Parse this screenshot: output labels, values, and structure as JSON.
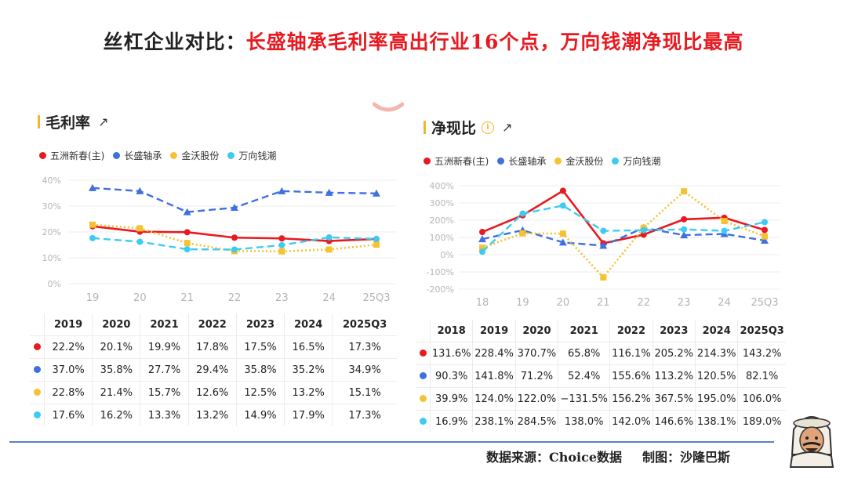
{
  "title": {
    "prefix": "丝杠企业对比：",
    "highlight": "长盛轴承毛利率高出行业16个点，万向钱潮净现比最高"
  },
  "colors": {
    "series": [
      "#e8191f",
      "#3f6fe0",
      "#f5c231",
      "#3ecbf0"
    ],
    "accent": "#f5b431",
    "footer_line": "#5b7fc7"
  },
  "left_panel": {
    "heading": "毛利率",
    "ext_icon": "external-link-icon",
    "ext_glyph": "↗"
  },
  "right_panel": {
    "heading": "净现比",
    "info_icon": "info-icon",
    "info_glyph": "i",
    "ext_icon": "external-link-icon",
    "ext_glyph": "↗"
  },
  "chart_data": [
    {
      "type": "line",
      "title": "毛利率",
      "categories": [
        "19",
        "20",
        "21",
        "22",
        "23",
        "24",
        "25Q3"
      ],
      "yticks": [
        "0%",
        "10%",
        "20%",
        "30%",
        "40%"
      ],
      "ylim": [
        0,
        40
      ],
      "series": [
        {
          "name": "五洲新春(主)",
          "values": [
            22.2,
            20.1,
            19.9,
            17.8,
            17.5,
            16.5,
            17.3
          ],
          "style": "solid"
        },
        {
          "name": "长盛轴承",
          "values": [
            37.0,
            35.8,
            27.7,
            29.4,
            35.8,
            35.2,
            34.9
          ],
          "style": "dashed"
        },
        {
          "name": "金沃股份",
          "values": [
            22.8,
            21.4,
            15.7,
            12.6,
            12.5,
            13.2,
            15.1
          ],
          "style": "dotted"
        },
        {
          "name": "万向钱潮",
          "values": [
            17.6,
            16.2,
            13.3,
            13.2,
            14.9,
            17.9,
            17.3
          ],
          "style": "dashed"
        }
      ],
      "table": {
        "headers": [
          "2019",
          "2020",
          "2021",
          "2022",
          "2023",
          "2024",
          "2025Q3"
        ],
        "rows": [
          [
            "22.2%",
            "20.1%",
            "19.9%",
            "17.8%",
            "17.5%",
            "16.5%",
            "17.3%"
          ],
          [
            "37.0%",
            "35.8%",
            "27.7%",
            "29.4%",
            "35.8%",
            "35.2%",
            "34.9%"
          ],
          [
            "22.8%",
            "21.4%",
            "15.7%",
            "12.6%",
            "12.5%",
            "13.2%",
            "15.1%"
          ],
          [
            "17.6%",
            "16.2%",
            "13.3%",
            "13.2%",
            "14.9%",
            "17.9%",
            "17.3%"
          ]
        ]
      }
    },
    {
      "type": "line",
      "title": "净现比",
      "categories": [
        "18",
        "19",
        "20",
        "21",
        "22",
        "23",
        "24",
        "25Q3"
      ],
      "yticks": [
        "-200%",
        "-100%",
        "0%",
        "100%",
        "200%",
        "300%",
        "400%"
      ],
      "ylim": [
        -200,
        400
      ],
      "series": [
        {
          "name": "五洲新春(主)",
          "values": [
            131.6,
            228.4,
            370.7,
            65.8,
            116.1,
            205.2,
            214.3,
            143.2
          ],
          "style": "solid"
        },
        {
          "name": "长盛轴承",
          "values": [
            90.3,
            141.8,
            71.2,
            52.4,
            155.6,
            113.2,
            120.5,
            82.1
          ],
          "style": "dashed"
        },
        {
          "name": "金沃股份",
          "values": [
            39.9,
            124.0,
            122.0,
            -131.5,
            156.2,
            367.5,
            195.0,
            106.0
          ],
          "style": "dotted"
        },
        {
          "name": "万向钱潮",
          "values": [
            16.9,
            238.1,
            284.5,
            138.0,
            142.0,
            146.6,
            138.1,
            189.0
          ],
          "style": "dashed"
        }
      ],
      "table": {
        "headers": [
          "2018",
          "2019",
          "2020",
          "2021",
          "2022",
          "2023",
          "2024",
          "2025Q3"
        ],
        "rows": [
          [
            "131.6%",
            "228.4%",
            "370.7%",
            "65.8%",
            "116.1%",
            "205.2%",
            "214.3%",
            "143.2%"
          ],
          [
            "90.3%",
            "141.8%",
            "71.2%",
            "52.4%",
            "155.6%",
            "113.2%",
            "120.5%",
            "82.1%"
          ],
          [
            "39.9%",
            "124.0%",
            "122.0%",
            "−131.5%",
            "156.2%",
            "367.5%",
            "195.0%",
            "106.0%"
          ],
          [
            "16.9%",
            "238.1%",
            "284.5%",
            "138.0%",
            "142.0%",
            "146.6%",
            "138.1%",
            "189.0%"
          ]
        ]
      }
    }
  ],
  "footer": {
    "source": "数据来源：Choice数据",
    "author": "制图：沙隆巴斯"
  }
}
